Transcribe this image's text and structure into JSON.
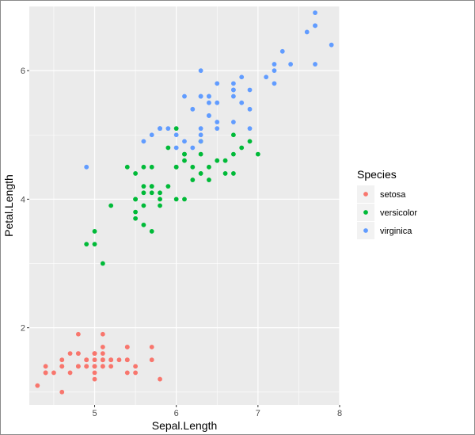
{
  "chart_data": {
    "type": "scatter",
    "xlabel": "Sepal.Length",
    "ylabel": "Petal.Length",
    "xlim": [
      4.2,
      8.0
    ],
    "ylim": [
      0.8,
      7.0
    ],
    "x_ticks": [
      5,
      6,
      7,
      8
    ],
    "y_ticks": [
      2,
      4,
      6
    ],
    "grid": true,
    "legend": {
      "title": "Species",
      "placement": "right"
    },
    "series": [
      {
        "name": "setosa",
        "color": "#F8766D",
        "points": [
          [
            5.1,
            1.4
          ],
          [
            4.9,
            1.4
          ],
          [
            4.7,
            1.3
          ],
          [
            4.6,
            1.5
          ],
          [
            5.0,
            1.4
          ],
          [
            5.4,
            1.7
          ],
          [
            4.6,
            1.4
          ],
          [
            5.0,
            1.5
          ],
          [
            4.4,
            1.4
          ],
          [
            4.9,
            1.5
          ],
          [
            5.4,
            1.5
          ],
          [
            4.8,
            1.6
          ],
          [
            4.8,
            1.4
          ],
          [
            4.3,
            1.1
          ],
          [
            5.8,
            1.2
          ],
          [
            5.7,
            1.5
          ],
          [
            5.4,
            1.3
          ],
          [
            5.1,
            1.4
          ],
          [
            5.7,
            1.7
          ],
          [
            5.1,
            1.5
          ],
          [
            5.4,
            1.7
          ],
          [
            5.1,
            1.5
          ],
          [
            4.6,
            1.0
          ],
          [
            5.1,
            1.7
          ],
          [
            4.8,
            1.9
          ],
          [
            5.0,
            1.6
          ],
          [
            5.0,
            1.6
          ],
          [
            5.2,
            1.5
          ],
          [
            5.2,
            1.4
          ],
          [
            4.7,
            1.6
          ],
          [
            4.8,
            1.6
          ],
          [
            5.4,
            1.5
          ],
          [
            5.2,
            1.5
          ],
          [
            5.5,
            1.4
          ],
          [
            4.9,
            1.5
          ],
          [
            5.0,
            1.2
          ],
          [
            5.5,
            1.3
          ],
          [
            4.9,
            1.4
          ],
          [
            4.4,
            1.3
          ],
          [
            5.1,
            1.5
          ],
          [
            5.0,
            1.3
          ],
          [
            4.5,
            1.3
          ],
          [
            4.4,
            1.3
          ],
          [
            5.0,
            1.6
          ],
          [
            5.1,
            1.9
          ],
          [
            4.8,
            1.4
          ],
          [
            5.1,
            1.6
          ],
          [
            4.6,
            1.4
          ],
          [
            5.3,
            1.5
          ],
          [
            5.0,
            1.4
          ]
        ]
      },
      {
        "name": "versicolor",
        "color": "#00BA38",
        "points": [
          [
            7.0,
            4.7
          ],
          [
            6.4,
            4.5
          ],
          [
            6.9,
            4.9
          ],
          [
            5.5,
            4.0
          ],
          [
            6.5,
            4.6
          ],
          [
            5.7,
            4.5
          ],
          [
            6.3,
            4.7
          ],
          [
            4.9,
            3.3
          ],
          [
            6.6,
            4.6
          ],
          [
            5.2,
            3.9
          ],
          [
            5.0,
            3.5
          ],
          [
            5.9,
            4.2
          ],
          [
            6.0,
            4.0
          ],
          [
            6.1,
            4.7
          ],
          [
            5.6,
            3.6
          ],
          [
            6.7,
            4.4
          ],
          [
            5.6,
            4.5
          ],
          [
            5.8,
            4.1
          ],
          [
            6.2,
            4.5
          ],
          [
            5.6,
            3.9
          ],
          [
            5.9,
            4.8
          ],
          [
            6.1,
            4.0
          ],
          [
            6.3,
            4.9
          ],
          [
            6.1,
            4.7
          ],
          [
            6.4,
            4.3
          ],
          [
            6.6,
            4.4
          ],
          [
            6.8,
            4.8
          ],
          [
            6.7,
            5.0
          ],
          [
            6.0,
            4.5
          ],
          [
            5.7,
            3.5
          ],
          [
            5.5,
            3.8
          ],
          [
            5.5,
            3.7
          ],
          [
            5.8,
            3.9
          ],
          [
            6.0,
            5.1
          ],
          [
            5.4,
            4.5
          ],
          [
            6.0,
            4.5
          ],
          [
            6.7,
            4.7
          ],
          [
            6.3,
            4.4
          ],
          [
            5.6,
            4.1
          ],
          [
            5.5,
            4.0
          ],
          [
            5.5,
            4.4
          ],
          [
            6.1,
            4.6
          ],
          [
            5.8,
            4.0
          ],
          [
            5.0,
            3.3
          ],
          [
            5.6,
            4.2
          ],
          [
            5.7,
            4.2
          ],
          [
            5.7,
            4.2
          ],
          [
            6.2,
            4.3
          ],
          [
            5.1,
            3.0
          ],
          [
            5.7,
            4.1
          ]
        ]
      },
      {
        "name": "virginica",
        "color": "#619CFF",
        "points": [
          [
            6.3,
            6.0
          ],
          [
            5.8,
            5.1
          ],
          [
            7.1,
            5.9
          ],
          [
            6.3,
            5.6
          ],
          [
            6.5,
            5.8
          ],
          [
            7.6,
            6.6
          ],
          [
            4.9,
            4.5
          ],
          [
            7.3,
            6.3
          ],
          [
            6.7,
            5.8
          ],
          [
            7.2,
            6.1
          ],
          [
            6.5,
            5.1
          ],
          [
            6.4,
            5.3
          ],
          [
            6.8,
            5.5
          ],
          [
            5.7,
            5.0
          ],
          [
            5.8,
            5.1
          ],
          [
            6.4,
            5.3
          ],
          [
            6.5,
            5.5
          ],
          [
            7.7,
            6.7
          ],
          [
            7.7,
            6.9
          ],
          [
            6.0,
            5.0
          ],
          [
            6.9,
            5.7
          ],
          [
            5.6,
            4.9
          ],
          [
            7.7,
            6.7
          ],
          [
            6.3,
            4.9
          ],
          [
            6.7,
            5.7
          ],
          [
            7.2,
            6.0
          ],
          [
            6.2,
            4.8
          ],
          [
            6.1,
            4.9
          ],
          [
            6.4,
            5.6
          ],
          [
            7.2,
            5.8
          ],
          [
            7.4,
            6.1
          ],
          [
            7.9,
            6.4
          ],
          [
            6.4,
            5.6
          ],
          [
            6.3,
            5.1
          ],
          [
            6.1,
            5.6
          ],
          [
            7.7,
            6.1
          ],
          [
            6.3,
            5.6
          ],
          [
            6.4,
            5.5
          ],
          [
            6.0,
            4.8
          ],
          [
            6.9,
            5.4
          ],
          [
            6.7,
            5.6
          ],
          [
            6.9,
            5.1
          ],
          [
            5.8,
            5.1
          ],
          [
            6.8,
            5.9
          ],
          [
            6.7,
            5.7
          ],
          [
            6.7,
            5.2
          ],
          [
            6.3,
            5.0
          ],
          [
            6.5,
            5.2
          ],
          [
            6.2,
            5.4
          ],
          [
            5.9,
            5.1
          ]
        ]
      }
    ]
  }
}
